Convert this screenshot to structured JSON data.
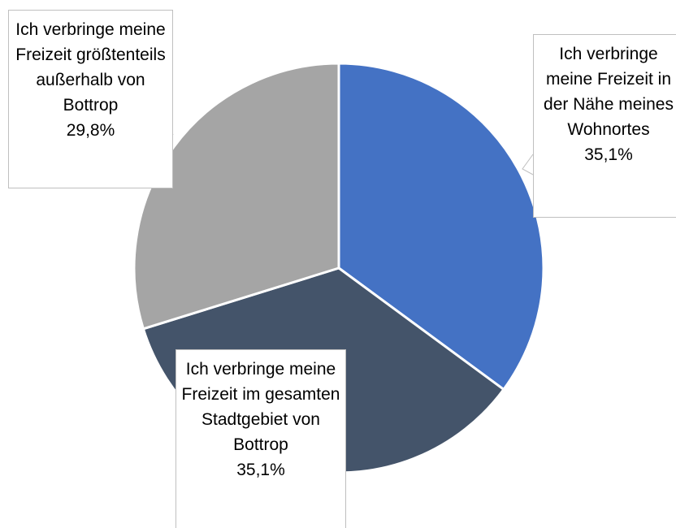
{
  "chart_data": {
    "type": "pie",
    "categories": [
      "Ich verbringe meine Freizeit in der Nähe meines Wohnortes",
      "Ich verbringe meine Freizeit im gesamten Stadtgebiet von Bottrop",
      "Ich verbringe meine Freizeit größtenteils außerhalb von Bottrop"
    ],
    "values": [
      35.1,
      35.1,
      29.8
    ],
    "value_labels": [
      "35,1%",
      "35,1%",
      "29,8%"
    ],
    "colors": [
      "#4472c4",
      "#44546a",
      "#a5a5a5"
    ]
  }
}
